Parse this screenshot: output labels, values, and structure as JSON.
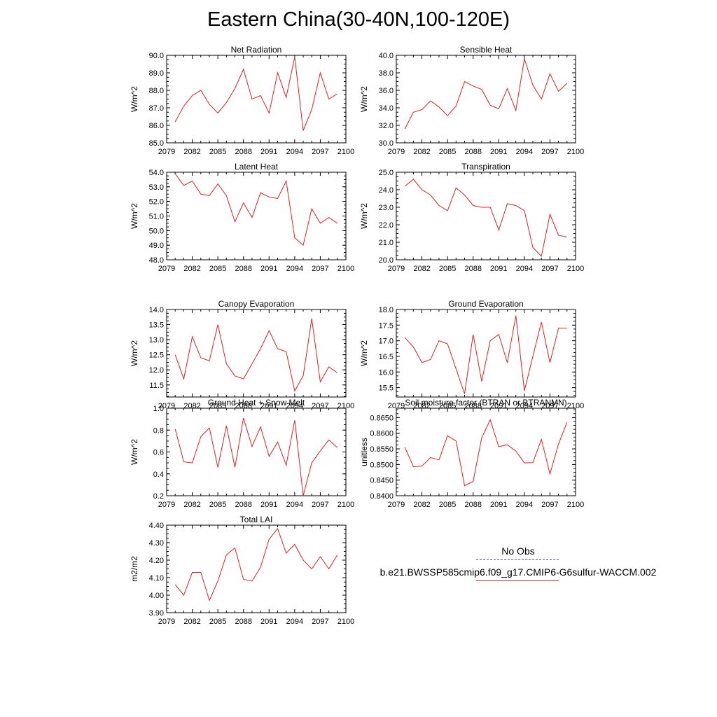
{
  "title": "Eastern China(30-40N,100-120E)",
  "legend": {
    "obs_label": "No Obs",
    "obs_color": "#5050a0",
    "case_label": "b.e21.BWSSP585cmip6.f09_g17.CMIP6-G6sulfur-WACCM.002",
    "case_color": "#e02020"
  },
  "chart_data": [
    {
      "type": "line",
      "title": "Net Radiation",
      "ylabel": "W/m^2",
      "xlim": [
        2079,
        2100
      ],
      "ylim": [
        85.0,
        90.0
      ],
      "yticks": [
        "85.0",
        "86.0",
        "87.0",
        "88.0",
        "89.0",
        "90.0"
      ],
      "xticks": [
        "2079",
        "2082",
        "2085",
        "2088",
        "2091",
        "2094",
        "2097",
        "2100"
      ],
      "x": [
        2080,
        2081,
        2082,
        2083,
        2084,
        2085,
        2086,
        2087,
        2088,
        2089,
        2090,
        2091,
        2092,
        2093,
        2094,
        2095,
        2096,
        2097,
        2098,
        2099
      ],
      "series": [
        {
          "color": "#e02020",
          "values": [
            86.2,
            87.1,
            87.7,
            88.0,
            87.2,
            86.7,
            87.3,
            88.1,
            89.2,
            87.5,
            87.7,
            86.7,
            89.0,
            87.6,
            89.9,
            85.7,
            86.9,
            89.0,
            87.5,
            87.8
          ]
        }
      ]
    },
    {
      "type": "line",
      "title": "Sensible Heat",
      "ylabel": "W/m^2",
      "xlim": [
        2079,
        2100
      ],
      "ylim": [
        30.0,
        40.0
      ],
      "yticks": [
        "30.0",
        "32.0",
        "34.0",
        "36.0",
        "38.0",
        "40.0"
      ],
      "xticks": [
        "2079",
        "2082",
        "2085",
        "2088",
        "2091",
        "2094",
        "2097",
        "2100"
      ],
      "x": [
        2080,
        2081,
        2082,
        2083,
        2084,
        2085,
        2086,
        2087,
        2088,
        2089,
        2090,
        2091,
        2092,
        2093,
        2094,
        2095,
        2096,
        2097,
        2098,
        2099
      ],
      "series": [
        {
          "color": "#e02020",
          "values": [
            31.6,
            33.5,
            33.8,
            34.8,
            34.1,
            33.1,
            34.2,
            37.0,
            36.5,
            36.1,
            34.3,
            33.9,
            36.2,
            33.7,
            39.6,
            36.6,
            35.0,
            37.9,
            35.9,
            36.8
          ]
        }
      ]
    },
    {
      "type": "line",
      "title": "Latent Heat",
      "ylabel": "W/m^2",
      "xlim": [
        2079,
        2100
      ],
      "ylim": [
        48.0,
        54.0
      ],
      "yticks": [
        "48.0",
        "49.0",
        "50.0",
        "51.0",
        "52.0",
        "53.0",
        "54.0"
      ],
      "xticks": [
        "2079",
        "2082",
        "2085",
        "2088",
        "2091",
        "2094",
        "2097",
        "2100"
      ],
      "x": [
        2080,
        2081,
        2082,
        2083,
        2084,
        2085,
        2086,
        2087,
        2088,
        2089,
        2090,
        2091,
        2092,
        2093,
        2094,
        2095,
        2096,
        2097,
        2098,
        2099
      ],
      "series": [
        {
          "color": "#e02020",
          "values": [
            53.9,
            53.1,
            53.4,
            52.5,
            52.4,
            53.2,
            52.4,
            50.6,
            51.9,
            50.9,
            52.6,
            52.3,
            52.2,
            53.4,
            49.5,
            49.0,
            51.5,
            50.5,
            50.9,
            50.5
          ]
        }
      ]
    },
    {
      "type": "line",
      "title": "Transpiration",
      "ylabel": "W/m^2",
      "xlim": [
        2079,
        2100
      ],
      "ylim": [
        20.0,
        25.0
      ],
      "yticks": [
        "20.0",
        "21.0",
        "22.0",
        "23.0",
        "24.0",
        "25.0"
      ],
      "xticks": [
        "2079",
        "2082",
        "2085",
        "2088",
        "2091",
        "2094",
        "2097",
        "2100"
      ],
      "x": [
        2080,
        2081,
        2082,
        2083,
        2084,
        2085,
        2086,
        2087,
        2088,
        2089,
        2090,
        2091,
        2092,
        2093,
        2094,
        2095,
        2096,
        2097,
        2098,
        2099
      ],
      "series": [
        {
          "color": "#e02020",
          "values": [
            24.2,
            24.6,
            24.0,
            23.7,
            23.1,
            22.8,
            24.1,
            23.7,
            23.1,
            23.0,
            23.0,
            21.7,
            23.2,
            23.1,
            22.8,
            20.7,
            20.2,
            22.6,
            21.4,
            21.3
          ]
        }
      ]
    },
    {
      "type": "line",
      "title": "Canopy Evaporation",
      "ylabel": "W/m^2",
      "xlim": [
        2079,
        2100
      ],
      "ylim": [
        11.1,
        14.0
      ],
      "yticks": [
        "11.5",
        "12.0",
        "12.5",
        "13.0",
        "13.5",
        "14.0"
      ],
      "xticks": [
        "2079",
        "2082",
        "2085",
        "2088",
        "2091",
        "2094",
        "2097",
        "2100"
      ],
      "x": [
        2080,
        2081,
        2082,
        2083,
        2084,
        2085,
        2086,
        2087,
        2088,
        2089,
        2090,
        2091,
        2092,
        2093,
        2094,
        2095,
        2096,
        2097,
        2098,
        2099
      ],
      "series": [
        {
          "color": "#e02020",
          "values": [
            12.5,
            11.7,
            13.1,
            12.4,
            12.3,
            13.5,
            12.2,
            11.8,
            11.7,
            12.2,
            12.7,
            13.3,
            12.7,
            12.6,
            11.3,
            11.8,
            13.7,
            11.6,
            12.1,
            11.9
          ]
        }
      ]
    },
    {
      "type": "line",
      "title": "Ground Evaporation",
      "ylabel": "W/m^2",
      "xlim": [
        2079,
        2100
      ],
      "ylim": [
        15.2,
        18.0
      ],
      "yticks": [
        "15.5",
        "16.0",
        "16.5",
        "17.0",
        "17.5",
        "18.0"
      ],
      "xticks": [
        "2079",
        "2082",
        "2085",
        "2088",
        "2091",
        "2094",
        "2097",
        "2100"
      ],
      "x": [
        2080,
        2081,
        2082,
        2083,
        2084,
        2085,
        2086,
        2087,
        2088,
        2089,
        2090,
        2091,
        2092,
        2093,
        2094,
        2095,
        2096,
        2097,
        2098,
        2099
      ],
      "series": [
        {
          "color": "#e02020",
          "values": [
            17.1,
            16.8,
            16.3,
            16.4,
            17.0,
            16.9,
            16.1,
            15.3,
            17.2,
            15.7,
            17.0,
            17.2,
            16.3,
            17.8,
            15.4,
            16.5,
            17.6,
            16.3,
            17.4,
            17.4
          ]
        }
      ]
    },
    {
      "type": "line",
      "title": "Ground Heat + Snow Melt",
      "ylabel": "W/m^2",
      "xlim": [
        2079,
        2100
      ],
      "ylim": [
        0.2,
        1.0
      ],
      "yticks": [
        "0.2",
        "0.4",
        "0.6",
        "0.8",
        "1.0"
      ],
      "xticks": [
        "2079",
        "2082",
        "2085",
        "2088",
        "2091",
        "2094",
        "2097",
        "2100"
      ],
      "x": [
        2080,
        2081,
        2082,
        2083,
        2084,
        2085,
        2086,
        2087,
        2088,
        2089,
        2090,
        2091,
        2092,
        2093,
        2094,
        2095,
        2096,
        2097,
        2098,
        2099
      ],
      "series": [
        {
          "color": "#e02020",
          "values": [
            0.81,
            0.51,
            0.5,
            0.74,
            0.82,
            0.46,
            0.84,
            0.46,
            0.91,
            0.65,
            0.83,
            0.56,
            0.69,
            0.48,
            0.89,
            0.2,
            0.5,
            0.61,
            0.71,
            0.64
          ]
        }
      ]
    },
    {
      "type": "line",
      "title": "Soil moisture factor (BTRAN or BTRANMN)",
      "ylabel": "unitless",
      "xlim": [
        2079,
        2100
      ],
      "ylim": [
        0.84,
        0.868
      ],
      "yticks": [
        "0.8400",
        "0.8450",
        "0.8500",
        "0.8550",
        "0.8600",
        "0.8650"
      ],
      "xticks": [
        "2079",
        "2082",
        "2085",
        "2088",
        "2091",
        "2094",
        "2097",
        "2100"
      ],
      "x": [
        2080,
        2081,
        2082,
        2083,
        2084,
        2085,
        2086,
        2087,
        2088,
        2089,
        2090,
        2091,
        2092,
        2093,
        2094,
        2095,
        2096,
        2097,
        2098,
        2099
      ],
      "series": [
        {
          "color": "#e02020",
          "values": [
            0.8555,
            0.8493,
            0.8495,
            0.8522,
            0.8515,
            0.8592,
            0.8575,
            0.8432,
            0.8446,
            0.8585,
            0.8643,
            0.8557,
            0.8563,
            0.8543,
            0.8505,
            0.8506,
            0.858,
            0.847,
            0.8565,
            0.8635
          ]
        }
      ]
    },
    {
      "type": "line",
      "title": "Total LAI",
      "ylabel": "m2/m2",
      "xlim": [
        2079,
        2100
      ],
      "ylim": [
        3.9,
        4.4
      ],
      "yticks": [
        "3.90",
        "4.00",
        "4.10",
        "4.20",
        "4.30",
        "4.40"
      ],
      "xticks": [
        "2079",
        "2082",
        "2085",
        "2088",
        "2091",
        "2094",
        "2097",
        "2100"
      ],
      "x": [
        2080,
        2081,
        2082,
        2083,
        2084,
        2085,
        2086,
        2087,
        2088,
        2089,
        2090,
        2091,
        2092,
        2093,
        2094,
        2095,
        2096,
        2097,
        2098,
        2099
      ],
      "series": [
        {
          "color": "#e02020",
          "values": [
            4.06,
            4.0,
            4.13,
            4.13,
            3.97,
            4.08,
            4.23,
            4.27,
            4.09,
            4.08,
            4.16,
            4.32,
            4.38,
            4.24,
            4.29,
            4.2,
            4.15,
            4.22,
            4.15,
            4.23
          ]
        }
      ]
    }
  ]
}
